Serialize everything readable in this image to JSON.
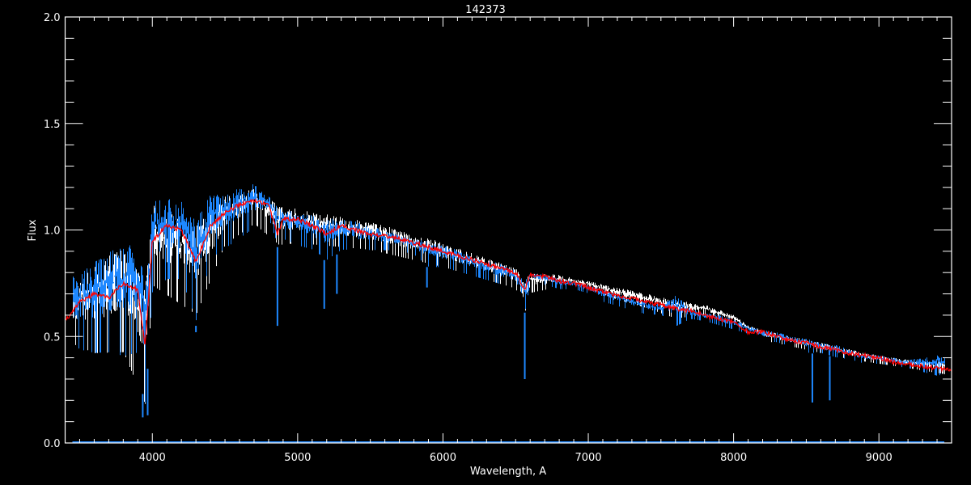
{
  "chart_data": {
    "type": "line",
    "title": "142373",
    "xlabel": "Wavelength, A",
    "ylabel": "Flux",
    "xlim": [
      3400,
      9500
    ],
    "ylim": [
      0.0,
      2.0
    ],
    "x_ticks": [
      4000,
      5000,
      6000,
      7000,
      8000,
      9000
    ],
    "x_tick_labels": [
      "4000",
      "5000",
      "6000",
      "7000",
      "8000",
      "9000"
    ],
    "x_minor_step": 100,
    "y_ticks": [
      0.0,
      0.5,
      1.0,
      1.5,
      2.0
    ],
    "y_tick_labels": [
      "0.0",
      "0.5",
      "1.0",
      "1.5",
      "2.0"
    ],
    "y_minor_step": 0.1,
    "grid": false,
    "legend": "none",
    "colors": {
      "background": "#000000",
      "axes": "#ffffff",
      "observed_blue": "#1e88ff",
      "observed_white": "#ffffff",
      "model": "#ff0000"
    },
    "series": [
      {
        "color": "#ff0000",
        "style": "model-line",
        "x": [
          3400,
          3450,
          3500,
          3600,
          3700,
          3800,
          3900,
          3950,
          4000,
          4100,
          4200,
          4300,
          4400,
          4500,
          4600,
          4700,
          4800,
          4860,
          4900,
          5000,
          5100,
          5200,
          5300,
          5400,
          5500,
          5600,
          5700,
          5800,
          5900,
          6000,
          6100,
          6200,
          6300,
          6400,
          6500,
          6563,
          6600,
          6700,
          6800,
          6900,
          7000,
          7100,
          7200,
          7300,
          7400,
          7500,
          7600,
          7700,
          7800,
          7900,
          8000,
          8100,
          8200,
          8300,
          8400,
          8500,
          8600,
          8700,
          8800,
          8900,
          9000,
          9100,
          9200,
          9300,
          9400,
          9500
        ],
        "y": [
          0.57,
          0.62,
          0.66,
          0.7,
          0.68,
          0.75,
          0.72,
          0.45,
          0.95,
          1.02,
          1.0,
          0.85,
          1.02,
          1.08,
          1.12,
          1.14,
          1.12,
          0.98,
          1.05,
          1.05,
          1.02,
          0.98,
          1.02,
          1.0,
          0.98,
          0.97,
          0.96,
          0.94,
          0.92,
          0.9,
          0.88,
          0.86,
          0.84,
          0.82,
          0.8,
          0.72,
          0.79,
          0.78,
          0.76,
          0.75,
          0.73,
          0.71,
          0.69,
          0.68,
          0.66,
          0.65,
          0.63,
          0.62,
          0.6,
          0.58,
          0.57,
          0.52,
          0.52,
          0.5,
          0.48,
          0.47,
          0.45,
          0.44,
          0.42,
          0.41,
          0.4,
          0.38,
          0.37,
          0.36,
          0.35,
          0.34
        ]
      },
      {
        "color": "#ffffff",
        "style": "observed-envelope",
        "x": [
          3450,
          3600,
          3800,
          3950,
          4000,
          4300,
          4500,
          4700,
          4870,
          5000,
          5500,
          6000,
          6500,
          6560,
          6600,
          6800,
          7000,
          7200,
          7400,
          7600,
          7800,
          8000,
          8100,
          8200,
          8400,
          8600,
          8800,
          9000,
          9200,
          9450
        ],
        "low": [
          0.45,
          0.4,
          0.4,
          0.15,
          0.72,
          0.58,
          0.92,
          1.02,
          0.92,
          0.93,
          0.9,
          0.82,
          0.72,
          0.6,
          0.7,
          0.73,
          0.72,
          0.67,
          0.63,
          0.58,
          0.6,
          0.56,
          0.52,
          0.48,
          0.45,
          0.42,
          0.39,
          0.37,
          0.35,
          0.32
        ],
        "high": [
          0.76,
          0.83,
          0.93,
          0.78,
          1.12,
          1.03,
          1.16,
          1.2,
          1.12,
          1.1,
          1.04,
          0.94,
          0.82,
          0.76,
          0.8,
          0.79,
          0.76,
          0.73,
          0.7,
          0.67,
          0.65,
          0.6,
          0.55,
          0.53,
          0.5,
          0.47,
          0.44,
          0.41,
          0.39,
          0.38
        ]
      },
      {
        "color": "#1e88ff",
        "style": "observed-envelope",
        "x": [
          3450,
          3500,
          3600,
          3700,
          3800,
          3900,
          3950,
          4000,
          4100,
          4200,
          4300,
          4400,
          4500,
          4600,
          4700,
          4800,
          4870,
          4900,
          5000,
          5100,
          5200,
          5300,
          5400,
          5500,
          5600,
          5700,
          5800,
          5900,
          6000,
          6100,
          6200,
          6300,
          6400,
          6500,
          6560,
          6600,
          6700,
          6800,
          6900,
          7000,
          7100,
          7200,
          7300,
          7400,
          7500,
          7600,
          7700,
          7800,
          7900,
          8000,
          8100,
          8200,
          8300,
          8400,
          8500,
          8600,
          8700,
          8800,
          8900,
          9000,
          9100,
          9200,
          9300,
          9400,
          9450
        ],
        "low": [
          0.45,
          0.42,
          0.4,
          0.4,
          0.38,
          0.4,
          0.15,
          0.7,
          0.75,
          0.75,
          0.55,
          0.85,
          0.9,
          0.95,
          1.0,
          1.05,
          0.9,
          0.95,
          0.92,
          0.9,
          0.85,
          0.9,
          0.9,
          0.9,
          0.9,
          0.9,
          0.88,
          0.82,
          0.82,
          0.8,
          0.78,
          0.76,
          0.74,
          0.72,
          0.6,
          0.76,
          0.74,
          0.72,
          0.72,
          0.7,
          0.66,
          0.64,
          0.62,
          0.6,
          0.6,
          0.54,
          0.58,
          0.57,
          0.55,
          0.53,
          0.51,
          0.48,
          0.47,
          0.45,
          0.42,
          0.42,
          0.4,
          0.39,
          0.37,
          0.37,
          0.36,
          0.35,
          0.33,
          0.31,
          0.32
        ],
        "high": [
          0.78,
          0.8,
          0.85,
          0.92,
          0.95,
          0.9,
          0.8,
          1.15,
          1.15,
          1.15,
          1.05,
          1.17,
          1.18,
          1.2,
          1.22,
          1.17,
          1.1,
          1.1,
          1.08,
          1.07,
          1.06,
          1.05,
          1.04,
          1.02,
          1.0,
          0.98,
          0.96,
          0.95,
          0.93,
          0.91,
          0.88,
          0.86,
          0.84,
          0.81,
          0.76,
          0.8,
          0.79,
          0.77,
          0.76,
          0.74,
          0.72,
          0.7,
          0.68,
          0.67,
          0.65,
          0.7,
          0.63,
          0.61,
          0.6,
          0.58,
          0.55,
          0.53,
          0.52,
          0.5,
          0.49,
          0.47,
          0.46,
          0.44,
          0.42,
          0.41,
          0.4,
          0.39,
          0.4,
          0.42,
          0.4
        ]
      }
    ],
    "absorption_lines": [
      {
        "x": 3934,
        "y": 0.12
      },
      {
        "x": 3968,
        "y": 0.13
      },
      {
        "x": 4300,
        "y": 0.52
      },
      {
        "x": 4861,
        "y": 0.55
      },
      {
        "x": 5183,
        "y": 0.63
      },
      {
        "x": 5270,
        "y": 0.7
      },
      {
        "x": 5890,
        "y": 0.73
      },
      {
        "x": 6563,
        "y": 0.3
      },
      {
        "x": 8542,
        "y": 0.19
      },
      {
        "x": 8662,
        "y": 0.2
      }
    ],
    "zero_line": {
      "x": [
        3450,
        9450
      ],
      "y": 0.0,
      "color": "#1e88ff"
    }
  }
}
